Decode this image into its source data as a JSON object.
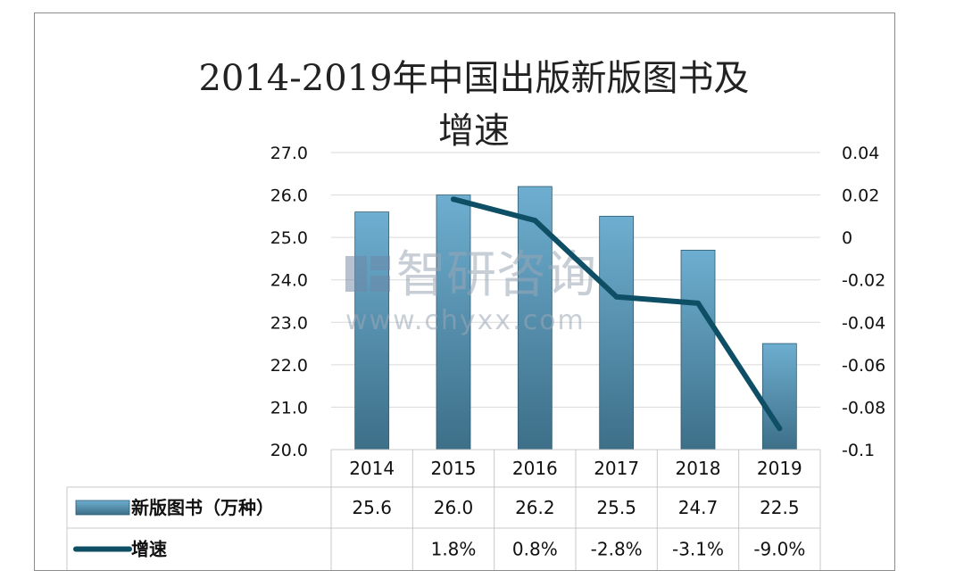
{
  "chart_data": {
    "type": "bar",
    "title_line1": "2014-2019年中国出版新版图书及",
    "title_line2": "增速",
    "categories": [
      "2014",
      "2015",
      "2016",
      "2017",
      "2018",
      "2019"
    ],
    "series": [
      {
        "name": "新版图书（万种）",
        "type": "bar",
        "axis": "left",
        "values": [
          25.6,
          26.0,
          26.2,
          25.5,
          24.7,
          22.5
        ],
        "labels": [
          "25.6",
          "26.0",
          "26.2",
          "25.5",
          "24.7",
          "22.5"
        ],
        "color": "#5b9bc0"
      },
      {
        "name": "增速",
        "type": "line",
        "axis": "right",
        "values": [
          null,
          0.018,
          0.008,
          -0.028,
          -0.031,
          -0.09
        ],
        "labels": [
          "",
          "1.8%",
          "0.8%",
          "-2.8%",
          "-3.1%",
          "-9.0%"
        ],
        "color": "#0e4f66"
      }
    ],
    "y_left": {
      "min": 20,
      "max": 27,
      "ticks": [
        "27.0",
        "26.0",
        "25.0",
        "24.0",
        "23.0",
        "22.0",
        "21.0",
        "20.0"
      ]
    },
    "y_right": {
      "min": -0.1,
      "max": 0.04,
      "ticks": [
        "0.04",
        "0.02",
        "0",
        "-0.02",
        "-0.04",
        "-0.06",
        "-0.08",
        "-0.1"
      ]
    },
    "grid": true,
    "legend": "data-table"
  },
  "watermark": {
    "brand": "智研咨询",
    "url": "www.chyxx.com"
  }
}
